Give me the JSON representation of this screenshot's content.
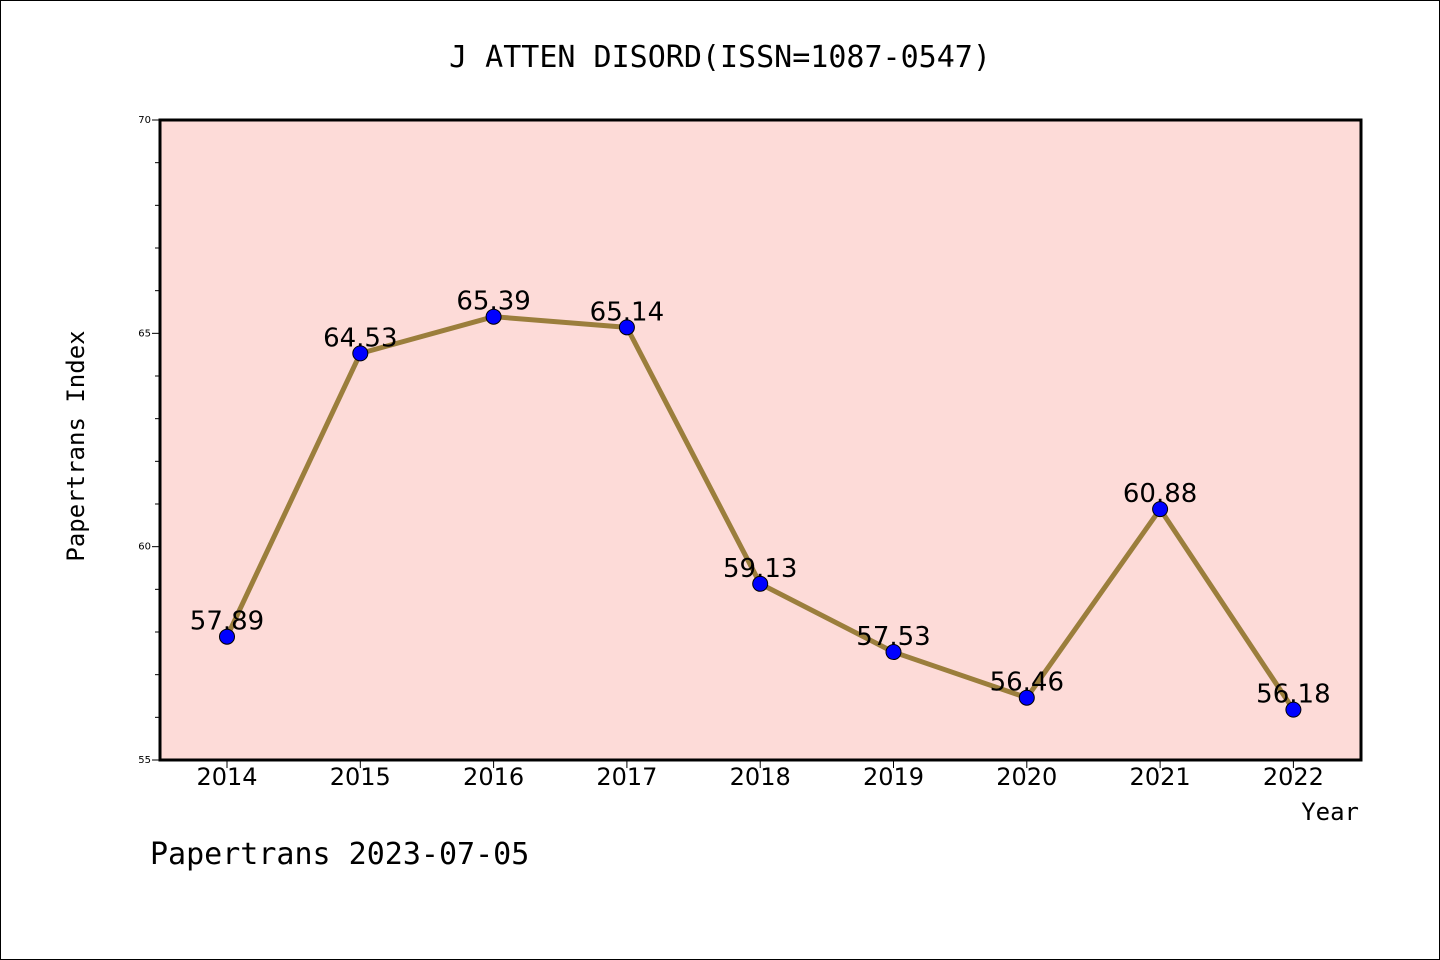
{
  "chart_data": {
    "type": "line",
    "title": "J ATTEN DISORD(ISSN=1087-0547)",
    "xlabel": "Year",
    "ylabel": "Papertrans Index",
    "x": [
      "2014",
      "2015",
      "2016",
      "2017",
      "2018",
      "2019",
      "2020",
      "2021",
      "2022"
    ],
    "values": [
      57.89,
      64.53,
      65.39,
      65.14,
      59.13,
      57.53,
      56.46,
      60.88,
      56.18
    ],
    "data_labels": [
      "57.89",
      "64.53",
      "65.39",
      "65.14",
      "59.13",
      "57.53",
      "56.46",
      "60.88",
      "56.18"
    ],
    "ylim": [
      55,
      70
    ],
    "yticks": [
      "55",
      "60",
      "65",
      "70"
    ],
    "grid": false,
    "legend": "none",
    "colors": {
      "plot_background": "#fddbd8",
      "line": "#9b7e3c",
      "marker": "#0000ff"
    }
  },
  "footer": "Papertrans 2023-07-05"
}
